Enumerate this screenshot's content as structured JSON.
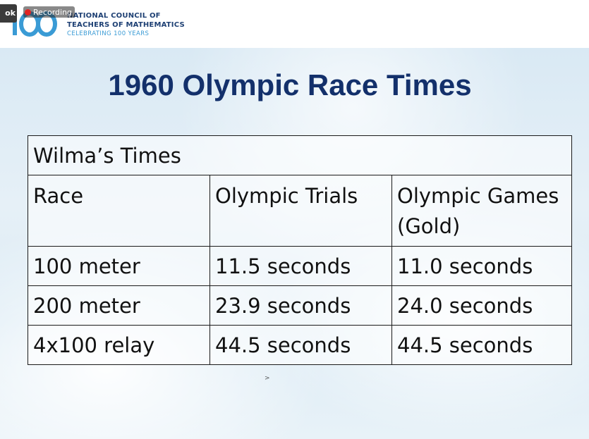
{
  "overlay": {
    "app_tag": "ok",
    "recording_label": "Recording"
  },
  "header": {
    "logo_mark_text": "100",
    "org_line_1": "NATIONAL COUNCIL OF",
    "org_line_2": "TEACHERS OF MATHEMATICS",
    "org_line_3": "CELEBRATING 100 YEARS",
    "colors": {
      "brand_navy": "#1d3f73",
      "brand_blue": "#3a9bd5"
    }
  },
  "slide": {
    "title": "1960 Olympic Race Times",
    "title_color": "#13306b",
    "table": {
      "caption": "Wilma’s Times",
      "headers": [
        "Race",
        "Olympic Trials",
        "Olympic Games (Gold)"
      ],
      "rows": [
        [
          "100 meter",
          "11.5 seconds",
          "11.0 seconds"
        ],
        [
          "200 meter",
          "23.9 seconds",
          "24.0 seconds"
        ],
        [
          "4x100 relay",
          "44.5 seconds",
          "44.5 seconds"
        ]
      ]
    },
    "cursor_glyph": ">"
  }
}
